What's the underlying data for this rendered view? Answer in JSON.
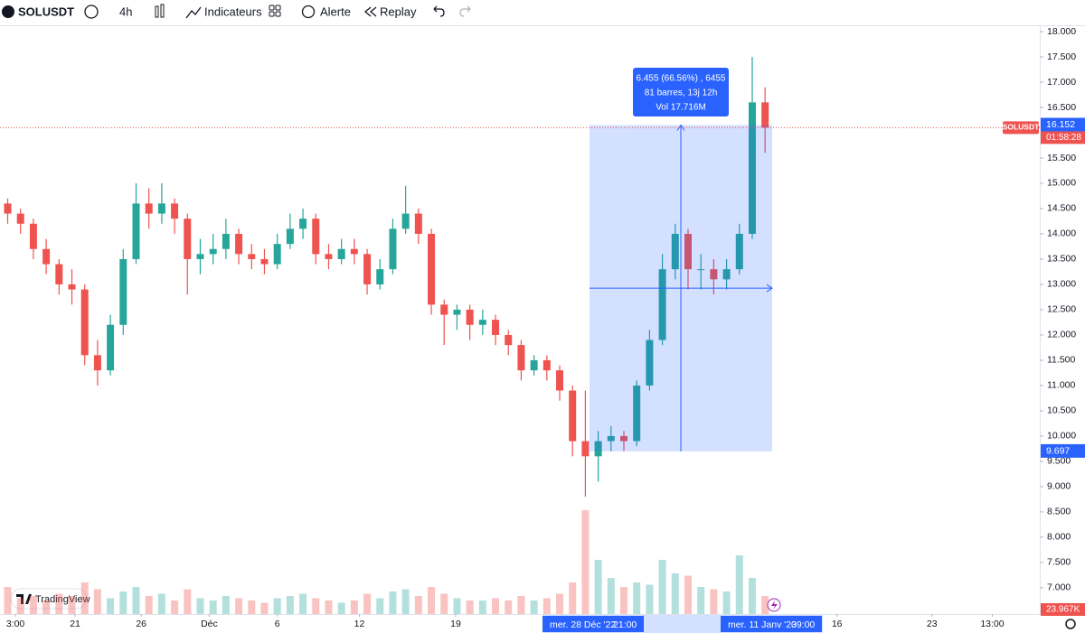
{
  "toolbar": {
    "symbol": "SOLUSDT",
    "interval": "4h",
    "indicators": "Indicateurs",
    "alert": "Alerte",
    "replay": "Replay"
  },
  "watermark": "TradingView",
  "chart_data": {
    "type": "candlestick",
    "symbol_label": "SOLUSDT",
    "countdown": "01:58:28",
    "volume_label": "23.967K",
    "up_color": "#26a69a",
    "down_color": "#ef5350",
    "grid": false,
    "xlim": [
      -0.6,
      80.4
    ],
    "xticks": [
      {
        "value": 0.6,
        "label": "3:00"
      },
      {
        "value": 5.25,
        "label": "21"
      },
      {
        "value": 10.4,
        "label": "26"
      },
      {
        "value": 15.7,
        "label": "Déc"
      },
      {
        "value": 21.0,
        "label": "6"
      },
      {
        "value": 27.4,
        "label": "12"
      },
      {
        "value": 34.9,
        "label": "19"
      },
      {
        "value": 64.6,
        "label": "16"
      },
      {
        "value": 72.0,
        "label": "23"
      },
      {
        "value": 76.7,
        "label": "13:00"
      }
    ],
    "ylim": [
      6.48,
      18.125
    ],
    "yticks": [
      {
        "value": 7,
        "label": "7.000"
      },
      {
        "value": 7.5,
        "label": "7.500"
      },
      {
        "value": 8,
        "label": "8.000"
      },
      {
        "value": 8.5,
        "label": "8.500"
      },
      {
        "value": 9,
        "label": "9.000"
      },
      {
        "value": 9.5,
        "label": "9.500"
      },
      {
        "value": 10,
        "label": "10.000"
      },
      {
        "value": 10.5,
        "label": "10.500"
      },
      {
        "value": 11,
        "label": "11.000"
      },
      {
        "value": 11.5,
        "label": "11.500"
      },
      {
        "value": 12,
        "label": "12.000"
      },
      {
        "value": 12.5,
        "label": "12.500"
      },
      {
        "value": 13,
        "label": "13.000"
      },
      {
        "value": 13.5,
        "label": "13.500"
      },
      {
        "value": 14,
        "label": "14.000"
      },
      {
        "value": 14.5,
        "label": "14.500"
      },
      {
        "value": 15,
        "label": "15.000"
      },
      {
        "value": 15.5,
        "label": "15.500"
      },
      {
        "value": 16.5,
        "label": "16.500"
      },
      {
        "value": 17,
        "label": "17.000"
      },
      {
        "value": 17.5,
        "label": "17.500"
      },
      {
        "value": 18,
        "label": "18.000"
      }
    ],
    "vlim": [
      0,
      300
    ],
    "ohlc": [
      [
        14.6,
        14.7,
        14.2,
        14.4
      ],
      [
        14.4,
        14.5,
        14.0,
        14.2
      ],
      [
        14.2,
        14.3,
        13.5,
        13.7
      ],
      [
        13.7,
        13.9,
        13.2,
        13.4
      ],
      [
        13.4,
        13.5,
        12.8,
        13.0
      ],
      [
        13.0,
        13.3,
        12.6,
        12.9
      ],
      [
        12.9,
        13.0,
        11.4,
        11.6
      ],
      [
        11.6,
        11.9,
        11.0,
        11.3
      ],
      [
        11.3,
        12.4,
        11.2,
        12.2
      ],
      [
        12.2,
        13.7,
        12.0,
        13.5
      ],
      [
        13.5,
        15.0,
        13.4,
        14.6
      ],
      [
        14.6,
        14.9,
        14.1,
        14.4
      ],
      [
        14.4,
        15.0,
        14.2,
        14.6
      ],
      [
        14.6,
        14.7,
        14.0,
        14.3
      ],
      [
        14.3,
        14.4,
        12.8,
        13.5
      ],
      [
        13.5,
        13.9,
        13.2,
        13.6
      ],
      [
        13.6,
        14.0,
        13.4,
        13.7
      ],
      [
        13.7,
        14.3,
        13.5,
        14.0
      ],
      [
        14.0,
        14.1,
        13.4,
        13.6
      ],
      [
        13.6,
        13.8,
        13.3,
        13.5
      ],
      [
        13.5,
        13.7,
        13.2,
        13.4
      ],
      [
        13.4,
        14.0,
        13.3,
        13.8
      ],
      [
        13.8,
        14.4,
        13.7,
        14.1
      ],
      [
        14.1,
        14.5,
        13.9,
        14.3
      ],
      [
        14.3,
        14.4,
        13.4,
        13.6
      ],
      [
        13.6,
        13.8,
        13.3,
        13.5
      ],
      [
        13.5,
        13.9,
        13.4,
        13.7
      ],
      [
        13.7,
        13.9,
        13.4,
        13.6
      ],
      [
        13.6,
        13.7,
        12.8,
        13.0
      ],
      [
        13.0,
        13.5,
        12.9,
        13.3
      ],
      [
        13.3,
        14.3,
        13.2,
        14.1
      ],
      [
        14.1,
        14.95,
        14.0,
        14.4
      ],
      [
        14.4,
        14.5,
        13.8,
        14.0
      ],
      [
        14.0,
        14.1,
        12.4,
        12.6
      ],
      [
        12.6,
        12.7,
        11.8,
        12.4
      ],
      [
        12.4,
        12.6,
        12.1,
        12.5
      ],
      [
        12.5,
        12.6,
        11.9,
        12.2
      ],
      [
        12.2,
        12.5,
        12.0,
        12.3
      ],
      [
        12.3,
        12.4,
        11.8,
        12.0
      ],
      [
        12.0,
        12.1,
        11.6,
        11.8
      ],
      [
        11.8,
        11.9,
        11.1,
        11.3
      ],
      [
        11.3,
        11.6,
        11.2,
        11.5
      ],
      [
        11.5,
        11.6,
        11.1,
        11.3
      ],
      [
        11.3,
        11.4,
        10.7,
        10.9
      ],
      [
        10.9,
        11.0,
        9.6,
        9.9
      ],
      [
        9.9,
        10.9,
        8.8,
        9.6
      ],
      [
        9.6,
        10.1,
        9.1,
        9.9
      ],
      [
        9.9,
        10.2,
        9.7,
        10.0
      ],
      [
        10.0,
        10.1,
        9.7,
        9.9
      ],
      [
        9.9,
        11.1,
        9.8,
        11.0
      ],
      [
        11.0,
        12.1,
        10.9,
        11.9
      ],
      [
        11.9,
        13.6,
        11.8,
        13.3
      ],
      [
        13.3,
        14.2,
        13.1,
        14.0
      ],
      [
        14.0,
        14.1,
        12.9,
        13.3
      ],
      [
        13.3,
        13.6,
        12.9,
        13.3
      ],
      [
        13.3,
        13.5,
        12.8,
        13.1
      ],
      [
        13.1,
        13.5,
        12.9,
        13.3
      ],
      [
        13.3,
        14.2,
        13.2,
        14.0
      ],
      [
        14.0,
        17.5,
        13.9,
        16.6
      ],
      [
        16.6,
        16.9,
        15.6,
        16.1
      ]
    ],
    "volume": [
      60,
      35,
      40,
      30,
      45,
      40,
      70,
      55,
      35,
      50,
      60,
      40,
      45,
      30,
      55,
      35,
      30,
      40,
      35,
      30,
      25,
      35,
      40,
      45,
      35,
      30,
      25,
      30,
      45,
      35,
      50,
      55,
      40,
      60,
      45,
      35,
      30,
      30,
      35,
      30,
      40,
      30,
      35,
      45,
      70,
      230,
      120,
      80,
      60,
      70,
      65,
      120,
      90,
      85,
      60,
      55,
      50,
      130,
      80,
      40
    ],
    "measure": {
      "to": 16.152,
      "from": 9.697,
      "lines": [
        "6.455 (66.56%) , 6455",
        "81 barres, 13j 12h",
        "Vol 17.716M"
      ],
      "start_date": "mer. 28 Déc '22",
      "start_time": "21:00",
      "end_date": "mer. 11 Janv '23",
      "end_time": "09:00"
    }
  }
}
